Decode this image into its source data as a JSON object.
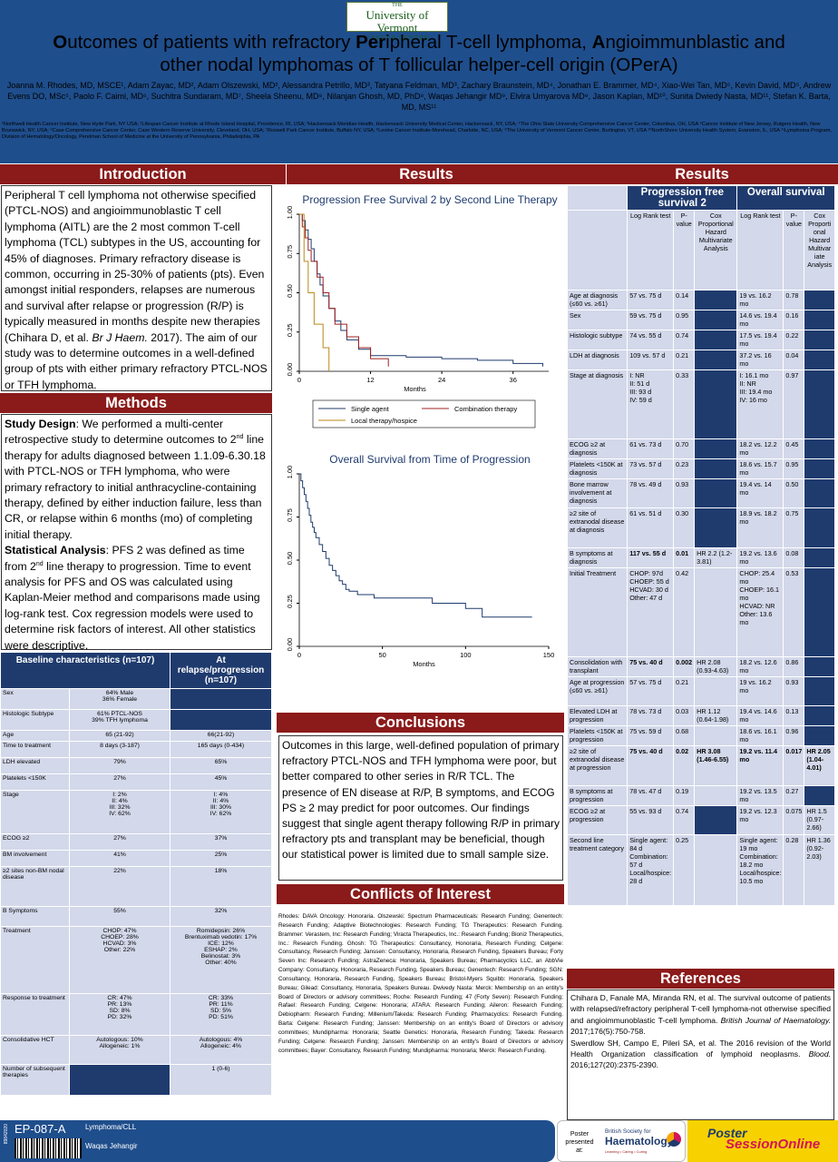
{
  "logo": {
    "line1": "THE",
    "line2": "University of Vermont",
    "line3": "CANCER CENTER"
  },
  "title": {
    "part1_b": "O",
    "part1": "utcomes of patients with refractory ",
    "part2_b": "Per",
    "part2": "ipheral T-cell lymphoma, ",
    "part3_b": "A",
    "part3": "ngioimmunblastic and",
    "line2": "other nodal lymphomas of T follicular helper-cell origin (OPerA)"
  },
  "authors": "Joanna M. Rhodes, MD, MSCE¹, Adam Zayac, MD², Adam Olszewski, MD², Alessandra Petrillo, MD³, Tatyana Feldman, MD³, Zachary Braunstein, MD⁴, Jonathan E. Brammer, MD⁴, Xiao-Wei Tan, MD⁵, Kevin David, MD⁵, Andrew Evens DO, MSc⁵, Paolo F. Caimi, MD⁶, Suchitra Sundaram, MD⁷, Sheela Sheenu, MD⁸, Nilanjan Ghosh, MD, PhD⁸, Waqas Jehangir MD⁹, Elvira Umyarova MD⁹, Jason Kaplan, MD¹⁰, Sunita Dwiedy Nasta, MD¹¹, Stefan K. Barta, MD, MS¹¹",
  "affiliations": "¹Northwell Health Cancer Institute, New Hyde Park, NY USA; ²Lifespan Cancer Institute at Rhode Island Hospital, Providence, RI, USA; ³Hackensack Meridian Health, Hackensack University Medical Center, Hackensack, NY, USA; ⁴The Ohio State University Comprehensive Cancer Center, Columbus, OH, USA ⁵Cancer Institute of New Jersey, Rutgers Health, New Brunswick, NY, USA; ⁶Case Comprehensive Cancer Center, Case Western Reserve University, Cleveland, OH, USA; ⁷Roswell Park Cancer Institute, Buffalo NY, USA; ⁸Levine Cancer Institute-Morehead, Charlotte, NC, USA; ⁹The University of Vermont Cancer Center, Burlington, VT, USA ¹⁰NorthShore University Health System, Evanston, IL, USA ¹¹Lymphoma Program, Division of Hematology/Oncology, Perelman School of Medicine at the University of Pennsylvania, Philadelphia, PA",
  "sections": {
    "intro": "Introduction",
    "methods": "Methods",
    "results": "Results",
    "conclusions": "Conclusions",
    "conflicts": "Conflicts of Interest",
    "references": "References"
  },
  "intro": {
    "pre": "Peripheral T cell lymphoma not otherwise specified (PTCL-NOS) and angioimmunoblastic T cell lymphoma (AITL) are the 2 most common T-cell lymphoma (TCL) subtypes in the US, accounting for 45% of diagnoses. Primary refractory disease is common, occurring in 25-30% of patients (pts). Even amongst initial responders, relapses are numerous and survival after relapse or progression (R/P) is typically measured in months despite new therapies (Chihara D, et al. ",
    "ital": "Br J Haem.",
    "post": " 2017). The aim of our study was to determine outcomes in a well-defined group of pts with either primary refractory PTCL-NOS or TFH lymphoma."
  },
  "methods": {
    "sd_label": "Study Design",
    "sd_a": ": We performed a multi-center retrospective study to determine outcomes to 2",
    "sd_sup": "nd",
    "sd_b": " line therapy for adults diagnosed between 1.1.09-6.30.18 with PTCL-NOS or TFH lymphoma, who were primary refractory to initial anthracycline-containing therapy, defined by either induction failure, less than CR, or relapse within 6 months (mo) of completing initial therapy.",
    "sa_label": "Statistical Analysis",
    "sa_a": ": PFS 2 was defined as time from 2",
    "sa_sup": "nd",
    "sa_b": " line therapy to progression. Time to event analysis for PFS and OS was calculated using Kaplan-Meier method and comparisons made using log-rank test. Cox regression models were used to determine risk factors of interest. All other statistics were descriptive."
  },
  "baseline": {
    "h1": "Baseline characteristics (n=107)",
    "h2": "At relapse/progression (n=107)",
    "rows": [
      {
        "k": "Sex",
        "a": "64% Male\n36% Female",
        "b": null
      },
      {
        "k": "Histologic Subtype",
        "a": "61% PTCL-NOS\n39% TFH lymphoma",
        "b": null
      },
      {
        "k": "Age",
        "a": "65 (21-92)",
        "b": "66(21-92)"
      },
      {
        "k": "Time to treatment",
        "a": "8 days (3-187)",
        "b": "165 days (0-434)"
      },
      {
        "k": "LDH elevated",
        "a": "79%",
        "b": "65%"
      },
      {
        "k": "Platelets <150K",
        "a": "27%",
        "b": "45%"
      },
      {
        "k": "Stage",
        "a": "I: 2%\nII: 4%\nIII: 32%\nIV: 62%",
        "b": "I: 4%\nII: 4%\nIII: 30%\nIV: 62%"
      },
      {
        "k": "ECOG ≥2",
        "a": "27%",
        "b": "37%"
      },
      {
        "k": "BM involvement",
        "a": "41%",
        "b": "25%"
      },
      {
        "k": "≥2 sites non-BM nodal disease",
        "a": "22%",
        "b": "18%"
      },
      {
        "k": "B Symptoms",
        "a": "55%",
        "b": "32%"
      },
      {
        "k": "Treatment",
        "a": "CHOP: 47%\nCHOEP: 28%\nHCVAD: 3%\nOther: 22%",
        "b": "Romidepsin: 26%\nBrentuximab vedotin: 17%\nICE: 12%\nESHAP: 2%\nBelinostat: 3%\nOther: 40%"
      },
      {
        "k": "Response to treatment",
        "a": "CR: 47%\nPR: 13%\nSD: 8%\nPD: 32%",
        "b": "CR: 33%\nPR: 11%\nSD: 5%\nPD: 51%"
      },
      {
        "k": "Consolidative HCT",
        "a": "Autologous: 10%\nAllogeneic: 1%",
        "b": "Autologous: 4%\nAllogeneic: 4%"
      },
      {
        "k": "Number of subsequent therapies",
        "a": null,
        "b": "1 (0-6)"
      }
    ]
  },
  "chart_data": [
    {
      "type": "line",
      "title": "Progression Free Survival 2 by Second Line Therapy",
      "xlabel": "Months",
      "ylabel": "",
      "xlim": [
        0,
        42
      ],
      "ylim": [
        0,
        1
      ],
      "xticks": [
        "0",
        "12",
        "24",
        "36"
      ],
      "yticks": [
        "0.00",
        "0.25",
        "0.50",
        "0.75",
        "1.00"
      ],
      "series": [
        {
          "name": "Single agent",
          "color": "#1f3b6e",
          "points": [
            [
              0,
              1
            ],
            [
              0.5,
              0.96
            ],
            [
              1,
              0.9
            ],
            [
              1.5,
              0.84
            ],
            [
              2,
              0.78
            ],
            [
              2.5,
              0.7
            ],
            [
              3,
              0.62
            ],
            [
              3.5,
              0.55
            ],
            [
              4,
              0.48
            ],
            [
              5,
              0.4
            ],
            [
              6,
              0.32
            ],
            [
              7,
              0.26
            ],
            [
              8,
              0.2
            ],
            [
              10,
              0.14
            ],
            [
              12,
              0.1
            ],
            [
              14,
              0.1
            ],
            [
              18,
              0.09
            ],
            [
              24,
              0.08
            ],
            [
              30,
              0.07
            ],
            [
              36,
              0.05
            ],
            [
              41,
              0.03
            ]
          ]
        },
        {
          "name": "Combination therapy",
          "color": "#a02020",
          "points": [
            [
              0,
              1
            ],
            [
              0.5,
              0.92
            ],
            [
              1,
              0.85
            ],
            [
              1.5,
              0.77
            ],
            [
              2,
              0.7
            ],
            [
              3,
              0.6
            ],
            [
              4,
              0.5
            ],
            [
              5,
              0.4
            ],
            [
              6,
              0.3
            ],
            [
              8,
              0.22
            ],
            [
              10,
              0.15
            ],
            [
              12,
              0.08
            ],
            [
              15,
              0.03
            ]
          ]
        },
        {
          "name": "Local therapy/hospice",
          "color": "#b88a1a",
          "points": [
            [
              0,
              1
            ],
            [
              0.8,
              0.7
            ],
            [
              1.5,
              0.5
            ],
            [
              2.5,
              0.3
            ],
            [
              4,
              0.15
            ],
            [
              5,
              0.0
            ]
          ]
        }
      ]
    },
    {
      "type": "line",
      "title": "Overall Survival from Time of Progression",
      "xlabel": "Months",
      "ylabel": "",
      "xlim": [
        0,
        150
      ],
      "ylim": [
        0,
        1
      ],
      "xticks": [
        "0",
        "50",
        "100",
        "150"
      ],
      "yticks": [
        "0.00",
        "0.25",
        "0.50",
        "0.75",
        "1.00"
      ],
      "series": [
        {
          "name": "",
          "color": "#1f3b6e",
          "points": [
            [
              0,
              1
            ],
            [
              1,
              0.96
            ],
            [
              2,
              0.92
            ],
            [
              3,
              0.88
            ],
            [
              4,
              0.84
            ],
            [
              5,
              0.8
            ],
            [
              6,
              0.76
            ],
            [
              7,
              0.72
            ],
            [
              8,
              0.69
            ],
            [
              9,
              0.66
            ],
            [
              10,
              0.63
            ],
            [
              12,
              0.59
            ],
            [
              14,
              0.55
            ],
            [
              16,
              0.51
            ],
            [
              18,
              0.47
            ],
            [
              20,
              0.44
            ],
            [
              22,
              0.41
            ],
            [
              24,
              0.38
            ],
            [
              26,
              0.36
            ],
            [
              28,
              0.33
            ],
            [
              30,
              0.32
            ],
            [
              35,
              0.3
            ],
            [
              40,
              0.3
            ],
            [
              45,
              0.28
            ],
            [
              60,
              0.28
            ],
            [
              80,
              0.25
            ],
            [
              100,
              0.22
            ],
            [
              110,
              0.17
            ],
            [
              140,
              0.17
            ]
          ]
        }
      ]
    }
  ],
  "results_table": {
    "pfs": "Progression free survival 2",
    "os": "Overall survival",
    "sub": [
      "Log Rank test",
      "P-value",
      "Cox Proportional Hazard Multivariate Analysis",
      "Log Rank test",
      "P-value",
      "Cox Proporti onal Hazard Multivar iate Analysis"
    ],
    "rows": [
      {
        "k": "Age at diagnosis (≤60 vs. ≥61)",
        "c": [
          "57 vs. 75 d",
          "0.14",
          null,
          "19 vs. 16.2 mo",
          "0.78",
          null
        ],
        "b": false
      },
      {
        "k": "Sex",
        "c": [
          "59 vs. 75 d",
          "0.95",
          null,
          "14.6 vs. 19.4 mo",
          "0.16",
          null
        ],
        "b": false
      },
      {
        "k": "Histologic subtype",
        "c": [
          "74 vs. 55 d",
          "0.74",
          null,
          "17.5 vs. 19.4 mo",
          "0.22",
          null
        ],
        "b": false
      },
      {
        "k": "LDH at diagnosis",
        "c": [
          "109 vs. 57 d",
          "0.21",
          null,
          "37.2 vs. 16 mo",
          "0.04",
          null
        ],
        "b": false
      },
      {
        "k": "Stage at diagnosis",
        "c": [
          "I: NR\nII: 51 d\nIII: 93 d\nIV: 59 d",
          "0.33",
          null,
          "I: 16.1 mo\nII: NR\nIII: 19.4 mo\nIV: 16 mo",
          "0.97",
          null
        ],
        "b": false
      },
      {
        "k": "ECOG ≥2 at diagnosis",
        "c": [
          "61 vs. 73 d",
          "0.70",
          null,
          "18.2 vs. 12.2 mo",
          "0.45",
          null
        ],
        "b": false
      },
      {
        "k": "Platelets <150K at diagnosis",
        "c": [
          "73 vs. 57 d",
          "0.23",
          null,
          "18.6 vs. 15.7 mo",
          "0.95",
          null
        ],
        "b": false
      },
      {
        "k": "Bone marrow involvement at diagnosis",
        "c": [
          "78 vs. 49 d",
          "0.93",
          null,
          "19.4 vs. 14 mo",
          "0.50",
          null
        ],
        "b": false
      },
      {
        "k": "≥2 site of extranodal disease at diagnosis",
        "c": [
          "61 vs. 51 d",
          "0.30",
          null,
          "18.9 vs. 18.2 mo",
          "0.75",
          null
        ],
        "b": false
      },
      {
        "k": "B symptoms at diagnosis",
        "c": [
          "117 vs. 55 d",
          "0.01",
          "HR 2.2 (1.2-3.81)",
          "19.2 vs. 13.6 mo",
          "0.08",
          null
        ],
        "b": "pfs"
      },
      {
        "k": "Initial Treatment",
        "c": [
          "CHOP: 97d\nCHOEP: 55 d\nHCVAD: 30 d\nOther: 47 d",
          "0.42",
          "",
          "CHOP: 25.4 mo\nCHOEP: 16.1 mo\nHCVAD: NR\nOther: 13.6 mo",
          "0.53",
          null
        ],
        "b": false
      },
      {
        "k": "Consolidation with transplant",
        "c": [
          "75 vs. 40 d",
          "0.002",
          "HR 2.08 (0.93-4.63)",
          "18.2 vs. 12.6 mo",
          "0.86",
          null
        ],
        "b": "pfs"
      },
      {
        "k": "Age at progression (≤60 vs. ≥61)",
        "c": [
          "57 vs. 75 d",
          "0.21",
          "",
          "19 vs. 16.2 mo",
          "0.93",
          null
        ],
        "b": false
      },
      {
        "k": "Elevated LDH at progression",
        "c": [
          "78 vs. 73 d",
          "0.03",
          "HR 1.12 (0.64-1.98)",
          "19.4 vs. 14.6 mo",
          "0.13",
          null
        ],
        "b": false
      },
      {
        "k": "Platelets <150K at progression",
        "c": [
          "75 vs. 59 d",
          "0.68",
          "",
          "18.6 vs. 16.1 mo",
          "0.96",
          null
        ],
        "b": false
      },
      {
        "k": "≥2 site of extranodal disease at progression",
        "c": [
          "75 vs. 40 d",
          "0.02",
          "HR 3.08 (1.46-6.55)",
          "19.2 vs. 11.4 mo",
          "0.017",
          "HR 2.05 (1.04-4.01)"
        ],
        "b": "all"
      },
      {
        "k": "B symptoms at progression",
        "c": [
          "78 vs. 47 d",
          "0.19",
          "",
          "19.2 vs. 13.5 mo",
          "0.27",
          null
        ],
        "b": false
      },
      {
        "k": "ECOG ≥2 at progression",
        "c": [
          "55 vs. 93 d",
          "0.74",
          null,
          "19.2 vs. 12.3 mo",
          "0.075",
          "HR 1.5 (0.97-2.66)"
        ],
        "b": false
      },
      {
        "k": "Second line treatment category",
        "c": [
          "Single agent: 84 d\nCombination: 57 d\nLocal/hospice: 28 d",
          "0.25",
          "",
          "Single agent: 19 mo\nCombination: 18.2 mo\nLocal/hospice: 10.5 mo",
          "0.28",
          "HR 1.36 (0.92-2.03)"
        ],
        "b": false
      }
    ]
  },
  "conclusions": "Outcomes in this large, well-defined population of primary refractory PTCL-NOS and TFH lymphoma were poor, but better compared to other series in R/R TCL. The presence of EN disease at R/P, B symptoms, and ECOG PS ≥ 2 may predict for poor outcomes. Our findings suggest that single agent therapy following R/P in primary refractory pts and transplant may be beneficial, though our statistical power is limited due to small sample size.",
  "conflicts": "Rhodes: DAVA Oncology: Honoraria. Olszewski: Spectrum Pharmaceuticals: Research Funding; Genentech: Research Funding; Adaptive Biotechnologies: Research Funding; TG Therapeutics: Research Funding. Brammer: Verastem, Inc: Research Funding; Viracta Therapeutics, Inc.: Research Funding; Bioniz Therapeutics, Inc.: Research Funding. Ghosh: TG Therapeutics: Consultancy, Honoraria, Research Funding; Celgene: Consultancy, Research Funding; Janssen: Consultancy, Honoraria, Research Funding, Speakers Bureau; Forty Seven Inc: Research Funding; AstraZeneca: Honoraria, Speakers Bureau; Pharmacyclics LLC, an AbbVie Company: Consultancy, Honoraria, Research Funding, Speakers Bureau; Genentech: Research Funding; SGN: Consultancy, Honoraria, Research Funding, Speakers Bureau; Bristol-Myers Squibb: Honoraria, Speakers Bureau; Gilead: Consultancy, Honoraria, Speakers Bureau. Dwivedy Nasta: Merck: Membership on an entity's Board of Directors or advisory committees; Roche: Research Funding; 47 (Forty Seven): Research Funding; Rafael: Research Funding; Celgene: Honoraria; ATARA: Research Funding; Aileron: Research Funding; Debiopharm: Research Funding; Millenium/Takeda: Research Funding; Pharmacyclics: Research Funding. Barta: Celgene: Research Funding; Janssen: Membership on an entity's Board of Directors or advisory committees; Mundipharma: Honoraria; Seattle Genetics: Honoraria, Research Funding; Takeda: Research Funding; Celgene: Research Funding; Janssen: Membership on an entity's Board of Directors or advisory committees; Bayer: Consultancy, Research Funding; Mundipharma: Honoraria; Merck: Research Funding.",
  "references": {
    "r1a": "Chihara D, Fanale MA, Miranda RN, et al. The survival outcome of patients with relapsed/refractory peripheral T-cell lymphoma-not otherwise specified and angioimmunoblastic T-cell lymphoma. ",
    "r1i": "British Journal of Haematology.",
    "r1b": " 2017;176(5):750-758.",
    "r2a": "Swerdlow SH, Campo E, Pileri SA, et al. The 2016 revision of the World Health Organization classification of lymphoid neoplasms. ",
    "r2i": "Blood.",
    "r2b": " 2016;127(20):2375-2390."
  },
  "footer": {
    "code": "EP-087-A",
    "side_id": "89842020",
    "category": "Lymphoma/CLL",
    "presenter": "Waqas Jehangir",
    "presented1": "Poster",
    "presented2": "presented at:",
    "bsh1": "British Society for",
    "bsh2": "Haematology",
    "bsh3": "Learning • Caring • Curing",
    "ps1": "Poster",
    "ps2": "SessionOnline"
  }
}
